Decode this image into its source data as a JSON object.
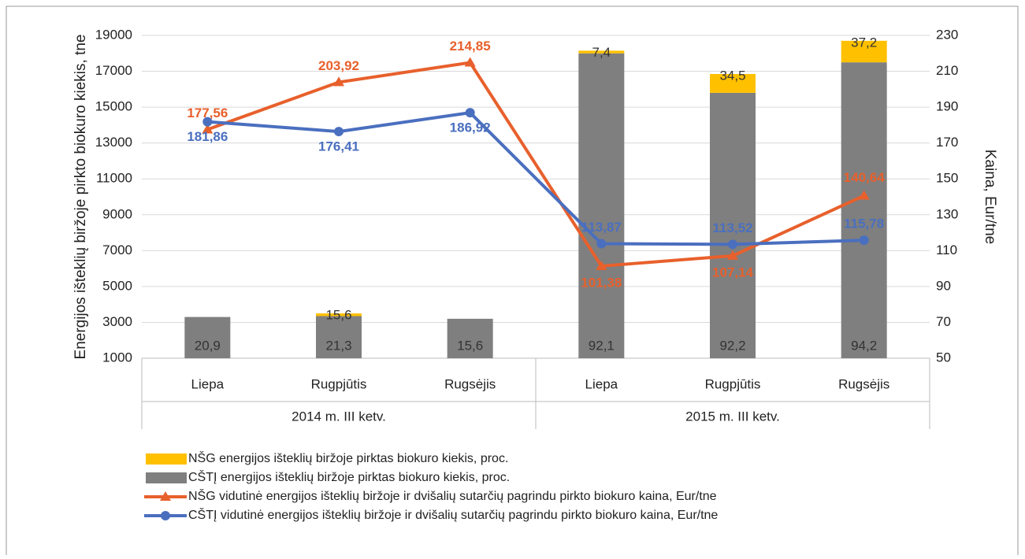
{
  "chart_data": {
    "type": "bar-line",
    "ylabel": "Energijos išteklių biržoje pirkto biokuro kiekis, tne",
    "y2label": "Kaina, Eur/tne",
    "categories": [
      "Liepa",
      "Rugpjūtis",
      "Rugsėjis",
      "Liepa",
      "Rugpjūtis",
      "Rugsėjis"
    ],
    "groups": [
      "2014 m. III ketv.",
      "2015 m. III ketv."
    ],
    "ylim": [
      1000,
      19000
    ],
    "yticks": [
      1000,
      3000,
      5000,
      7000,
      9000,
      11000,
      13000,
      15000,
      17000,
      19000
    ],
    "y2lim": [
      50,
      230
    ],
    "y2ticks": [
      50,
      70,
      90,
      110,
      130,
      150,
      170,
      190,
      210,
      230
    ],
    "grid": true,
    "bars": [
      {
        "name": "CŠTĮ energijos išteklių biržoje pirktas biokuro kiekis, proc.",
        "color": "#7f7f7f",
        "values": [
          2300,
          2350,
          2200,
          17000,
          14800,
          16500
        ],
        "shares": [
          20.9,
          21.3,
          15.6,
          92.1,
          92.2,
          94.2
        ],
        "share_labels": [
          "20,9",
          "21,3",
          "15,6",
          "92,1",
          "92,2",
          "94,2"
        ]
      },
      {
        "name": "NŠG energijos išteklių biržoje pirktas biokuro kiekis, proc.",
        "color": "#ffc000",
        "values": [
          null,
          150,
          null,
          150,
          1050,
          1200
        ],
        "shares": [
          null,
          15.6,
          null,
          7.4,
          34.5,
          37.2
        ],
        "share_labels": [
          null,
          "15,6",
          null,
          "7,4",
          "34,5",
          "37,2"
        ]
      }
    ],
    "series": [
      {
        "name": "NŠG  vidutinė energijos išteklių biržoje ir dvišalių sutarčių pagrindu pirkto biokuro kaina, Eur/tne",
        "color": "#e8602c",
        "marker": "triangle",
        "axis": "y2",
        "values": [
          177.56,
          203.92,
          214.85,
          101.38,
          107.14,
          140.64
        ],
        "value_labels": [
          "177,56",
          "203,92",
          "214,85",
          "101,38",
          "107,14",
          "140,64"
        ]
      },
      {
        "name": "CŠTĮ  vidutinė energijos išteklių biržoje ir dvišalių sutarčių pagrindu pirkto biokuro kaina, Eur/tne",
        "color": "#4a6fbf",
        "marker": "circle",
        "axis": "y2",
        "values": [
          181.86,
          176.41,
          186.92,
          113.87,
          113.52,
          115.78
        ],
        "value_labels": [
          "181,86",
          "176,41",
          "186,92",
          "113,87",
          "113,52",
          "115,78"
        ]
      }
    ]
  }
}
